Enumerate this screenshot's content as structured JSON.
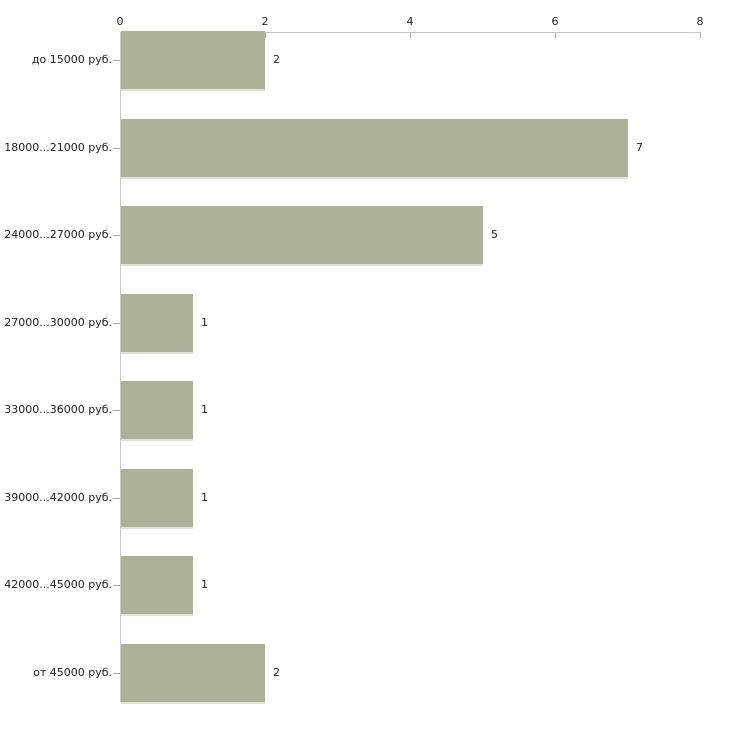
{
  "chart_data": {
    "type": "bar",
    "orientation": "horizontal",
    "title": "",
    "xlabel": "",
    "ylabel": "",
    "categories": [
      "до 15000 руб.",
      "18000...21000 руб.",
      "24000...27000 руб.",
      "27000...30000 руб.",
      "33000...36000 руб.",
      "39000...42000 руб.",
      "42000...45000 руб.",
      "от 45000 руб."
    ],
    "values": [
      2,
      7,
      5,
      1,
      1,
      1,
      1,
      2
    ],
    "value_labels": [
      "2",
      "7",
      "5",
      "1",
      "1",
      "1",
      "1",
      "2"
    ],
    "xlim": [
      0,
      8
    ],
    "x_ticks": [
      0,
      2,
      4,
      6,
      8
    ],
    "x_tick_labels": [
      "0",
      "2",
      "4",
      "6",
      "8"
    ],
    "axis_position": "top",
    "grid": false,
    "legend": "none",
    "colors": {
      "bar_fill": "#acb197",
      "bar_bottom_edge": "#e0e2d4",
      "x_axis_line": "#c6c6c6",
      "y_axis_line": "#cacaca",
      "tick_mark": "#b0b08a",
      "text": "#1f1f1f"
    }
  }
}
